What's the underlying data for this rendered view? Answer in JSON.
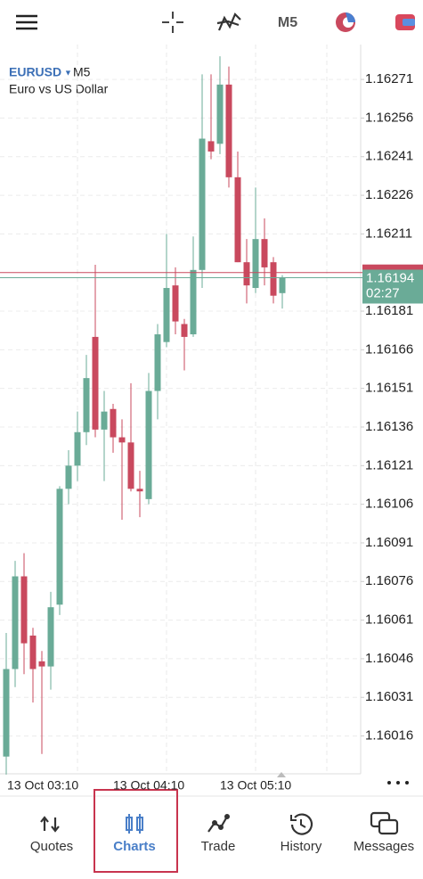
{
  "toolbar": {
    "timeframe": "M5"
  },
  "chart": {
    "type": "candlestick",
    "symbol": "EURUSD",
    "timeframe": "M5",
    "description": "Euro vs US Dollar",
    "open": [
      1.16008,
      1.16042,
      1.16078,
      1.16055,
      1.16045,
      1.16043,
      1.16067,
      1.16112,
      1.16121,
      1.16134,
      1.16171,
      1.16135,
      1.16143,
      1.16132,
      1.1613,
      1.16112,
      1.16108,
      1.1615,
      1.16169,
      1.16191,
      1.16176,
      1.16172,
      1.16197,
      1.16247,
      1.16246,
      1.16269,
      1.16233,
      1.162,
      1.1619,
      1.16209,
      1.162,
      1.16188
    ],
    "high": [
      1.16056,
      1.16084,
      1.16087,
      1.16058,
      1.16049,
      1.16072,
      1.16113,
      1.16127,
      1.16142,
      1.16164,
      1.16199,
      1.1615,
      1.16145,
      1.16139,
      1.16153,
      1.16119,
      1.16157,
      1.16176,
      1.16211,
      1.16198,
      1.16178,
      1.1621,
      1.16273,
      1.16273,
      1.1628,
      1.16276,
      1.16243,
      1.16209,
      1.16229,
      1.16217,
      1.16202,
      1.16195
    ],
    "low": [
      1.16001,
      1.16035,
      1.1604,
      1.16029,
      1.16009,
      1.16034,
      1.16063,
      1.16106,
      1.16115,
      1.16129,
      1.16132,
      1.16115,
      1.16126,
      1.161,
      1.16111,
      1.16101,
      1.16106,
      1.16139,
      1.16167,
      1.16172,
      1.16158,
      1.16171,
      1.1619,
      1.1624,
      1.16242,
      1.16229,
      1.162,
      1.16184,
      1.16188,
      1.16191,
      1.16184,
      1.16182
    ],
    "close": [
      1.16042,
      1.16078,
      1.16052,
      1.16042,
      1.16043,
      1.16066,
      1.16112,
      1.16121,
      1.16134,
      1.16155,
      1.16135,
      1.16142,
      1.16132,
      1.1613,
      1.16112,
      1.16111,
      1.1615,
      1.16172,
      1.1619,
      1.16177,
      1.16171,
      1.16197,
      1.16248,
      1.16243,
      1.16269,
      1.16233,
      1.162,
      1.16191,
      1.16209,
      1.16198,
      1.16187,
      1.16194
    ],
    "up_color": "#6aab97",
    "down_color": "#c9495e",
    "ylim": [
      1.16002,
      1.16288
    ],
    "yticks": [
      1.16271,
      1.16256,
      1.16241,
      1.16226,
      1.16211,
      1.16181,
      1.16166,
      1.16151,
      1.16136,
      1.16121,
      1.16106,
      1.16091,
      1.16076,
      1.16061,
      1.16046,
      1.16031,
      1.16016
    ],
    "xlabels": [
      "13 Oct 03:10",
      "13 Oct 04:10",
      "13 Oct 05:10"
    ],
    "bid": 1.16194,
    "ask": 1.16196,
    "bid_time": "02:27"
  },
  "nav": {
    "tabs": [
      "Quotes",
      "Charts",
      "Trade",
      "History",
      "Messages"
    ],
    "active": 1
  }
}
